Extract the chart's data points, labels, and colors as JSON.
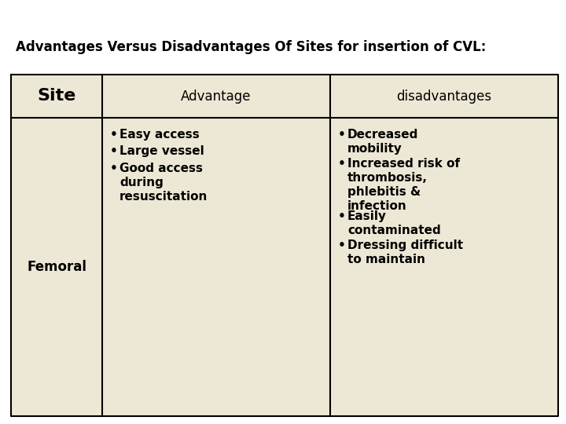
{
  "title": "Advantages Versus Disadvantages Of Sites for insertion of CVL:",
  "title_fontsize": 12,
  "title_fontweight": "bold",
  "background_color": "#FFFFFF",
  "table_bg": "#EDE8D5",
  "header_col1": "Site",
  "header_col2": "Advantage",
  "header_col3": "disadvantages",
  "site_label": "Femoral",
  "advantages": [
    "Easy access",
    "Large vessel",
    "Good access\nduring\nresuscitation"
  ],
  "disadvantages": [
    "Decreased\nmobility",
    "Increased risk of\nthrombosis,\nphlebitis &\ninfection",
    "Easily\ncontaminated",
    "Dressing difficult\nto maintain"
  ],
  "border_color": "#000000",
  "text_color": "#000000",
  "bullet": "•"
}
